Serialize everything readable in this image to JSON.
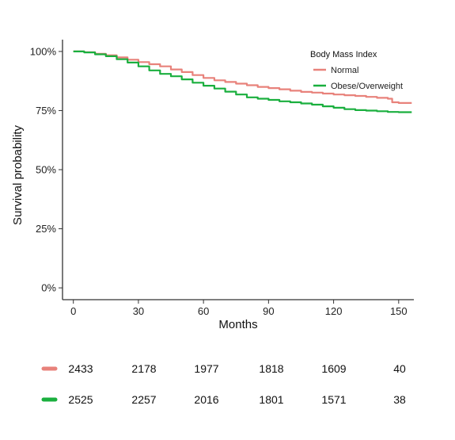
{
  "chart_data": {
    "type": "line",
    "title": "",
    "xlabel": "Months",
    "ylabel": "Survival probability",
    "xlim": [
      -5,
      157
    ],
    "ylim": [
      -0.05,
      1.05
    ],
    "x_ticks": [
      0,
      30,
      60,
      90,
      120,
      150
    ],
    "y_ticks": [
      0,
      0.25,
      0.5,
      0.75,
      1.0
    ],
    "y_tick_labels": [
      "0%",
      "25%",
      "50%",
      "75%",
      "100%"
    ],
    "grid": false,
    "legend": {
      "title": "Body Mass Index",
      "placement": "top-right"
    },
    "series": [
      {
        "name": "Normal",
        "color": "#E8827B",
        "x": [
          0,
          5,
          10,
          15,
          20,
          25,
          30,
          35,
          40,
          45,
          50,
          55,
          60,
          65,
          70,
          75,
          80,
          85,
          90,
          95,
          100,
          105,
          110,
          115,
          120,
          125,
          130,
          135,
          140,
          145,
          147,
          150,
          156
        ],
        "y": [
          1.0,
          0.997,
          0.99,
          0.984,
          0.975,
          0.965,
          0.955,
          0.946,
          0.937,
          0.924,
          0.913,
          0.9,
          0.888,
          0.878,
          0.871,
          0.864,
          0.857,
          0.85,
          0.845,
          0.84,
          0.834,
          0.829,
          0.826,
          0.822,
          0.818,
          0.815,
          0.812,
          0.808,
          0.804,
          0.8,
          0.785,
          0.782,
          0.782
        ]
      },
      {
        "name": "Obese/Overweight",
        "color": "#1AAF3E",
        "x": [
          0,
          5,
          10,
          15,
          20,
          25,
          30,
          35,
          40,
          45,
          50,
          55,
          60,
          65,
          70,
          75,
          80,
          85,
          90,
          95,
          100,
          105,
          110,
          115,
          120,
          125,
          130,
          135,
          140,
          145,
          150,
          156
        ],
        "y": [
          1.0,
          0.996,
          0.988,
          0.98,
          0.967,
          0.953,
          0.937,
          0.92,
          0.905,
          0.895,
          0.882,
          0.868,
          0.855,
          0.843,
          0.83,
          0.818,
          0.806,
          0.8,
          0.795,
          0.789,
          0.785,
          0.78,
          0.775,
          0.768,
          0.762,
          0.756,
          0.752,
          0.75,
          0.747,
          0.744,
          0.743,
          0.743
        ]
      }
    ],
    "risk_table": [
      {
        "name": "Normal",
        "color": "#E8827B",
        "counts": [
          "2433",
          "2178",
          "1977",
          "1818",
          "1609",
          "40"
        ]
      },
      {
        "name": "Obese/Overweight",
        "color": "#1AAF3E",
        "counts": [
          "2525",
          "2257",
          "2016",
          "1801",
          "1571",
          "38"
        ]
      }
    ]
  }
}
